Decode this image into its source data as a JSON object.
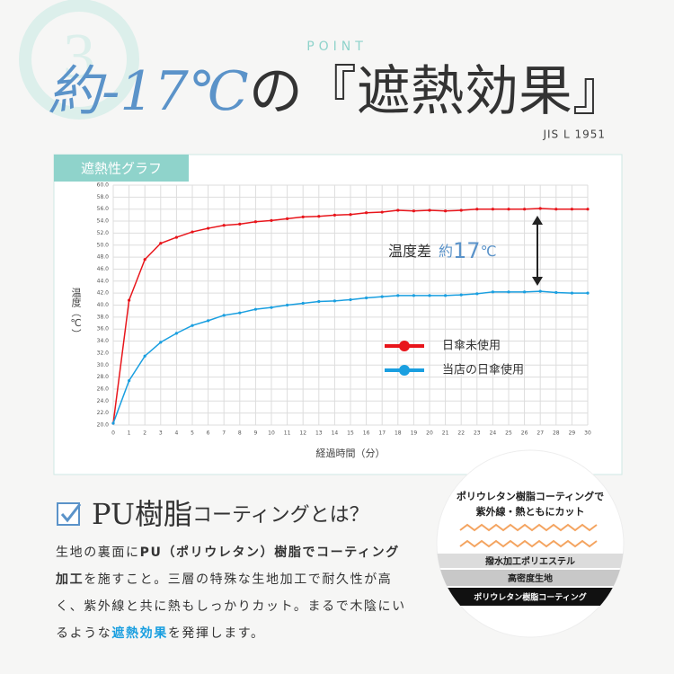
{
  "header": {
    "badge": "3",
    "point": "POINT",
    "title_accent": "約-17℃",
    "title_rest": "の『遮熱効果』",
    "standard": "JIS L 1951"
  },
  "chart_tab": "遮熱性グラフ",
  "chart_data": {
    "type": "line",
    "x_label": "経過時間（分）",
    "y_label": "温度（℃）",
    "annotation": [
      "温度差",
      "約",
      "17",
      "℃"
    ],
    "x": [
      0,
      1,
      2,
      3,
      4,
      5,
      6,
      7,
      8,
      9,
      10,
      11,
      12,
      13,
      14,
      15,
      16,
      17,
      18,
      19,
      20,
      21,
      22,
      23,
      24,
      25,
      26,
      27,
      28,
      29,
      30
    ],
    "xlim": [
      0,
      30
    ],
    "xticks": [
      0,
      1,
      2,
      3,
      4,
      5,
      6,
      7,
      8,
      9,
      10,
      11,
      12,
      13,
      14,
      15,
      16,
      17,
      18,
      19,
      20,
      21,
      22,
      23,
      24,
      25,
      26,
      27,
      28,
      29,
      30
    ],
    "ylim": [
      20,
      60
    ],
    "yticks": [
      {
        "value": 20,
        "label": "20.0"
      },
      {
        "value": 22,
        "label": "22.0"
      },
      {
        "value": 24,
        "label": "24.0"
      },
      {
        "value": 26,
        "label": "26.0"
      },
      {
        "value": 28,
        "label": "28.0"
      },
      {
        "value": 30,
        "label": "30.0"
      },
      {
        "value": 32,
        "label": "32.0"
      },
      {
        "value": 34,
        "label": "34.0"
      },
      {
        "value": 36,
        "label": "36.0"
      },
      {
        "value": 38,
        "label": "38.0"
      },
      {
        "value": 40,
        "label": "40.0"
      },
      {
        "value": 42,
        "label": "42.0"
      },
      {
        "value": 44,
        "label": "44.0"
      },
      {
        "value": 46,
        "label": "46.0"
      },
      {
        "value": 48,
        "label": "48.0"
      },
      {
        "value": 50,
        "label": "50.0"
      },
      {
        "value": 52,
        "label": "52.0"
      },
      {
        "value": 54,
        "label": "54.0"
      },
      {
        "value": 56,
        "label": "56.0"
      },
      {
        "value": 58,
        "label": "58.0"
      },
      {
        "value": 60,
        "label": "60.0"
      }
    ],
    "grid": true,
    "series": [
      {
        "name": "日傘未使用",
        "color": "#e8151b",
        "values": [
          20.3,
          40.8,
          47.6,
          50.3,
          51.3,
          52.2,
          52.8,
          53.3,
          53.5,
          53.9,
          54.1,
          54.4,
          54.7,
          54.8,
          55.0,
          55.1,
          55.4,
          55.5,
          55.8,
          55.7,
          55.8,
          55.7,
          55.8,
          56.0,
          56.0,
          56.0,
          56.0,
          56.1,
          56.0,
          56.0,
          56.0
        ]
      },
      {
        "name": "当店の日傘使用",
        "color": "#1a9fe0",
        "values": [
          20.3,
          27.4,
          31.5,
          33.8,
          35.3,
          36.6,
          37.4,
          38.3,
          38.7,
          39.3,
          39.6,
          40.0,
          40.3,
          40.6,
          40.7,
          40.9,
          41.2,
          41.4,
          41.6,
          41.6,
          41.6,
          41.6,
          41.7,
          41.9,
          42.2,
          42.2,
          42.2,
          42.3,
          42.1,
          42.0,
          42.0
        ]
      }
    ]
  },
  "section": {
    "title_big": "PU樹脂",
    "title_small": "コーティングとは？",
    "body": [
      "生地の裏面に",
      "PU（ポリウレタン）樹脂でコーティング加工",
      "を施すこと。三層の特殊な生地加工で耐久性が高く、紫外線と共に熱もしっかりカット。まるで木陰にいるような",
      "遮熱効果",
      "を発揮します。"
    ]
  },
  "diagram": {
    "caption": [
      "ポリウレタン樹脂コーティングで",
      "紫外線・熱ともにカット"
    ],
    "layers": [
      "撥水加工ポリエステル",
      "高密度生地",
      "ポリウレタン樹脂コーティング"
    ]
  }
}
